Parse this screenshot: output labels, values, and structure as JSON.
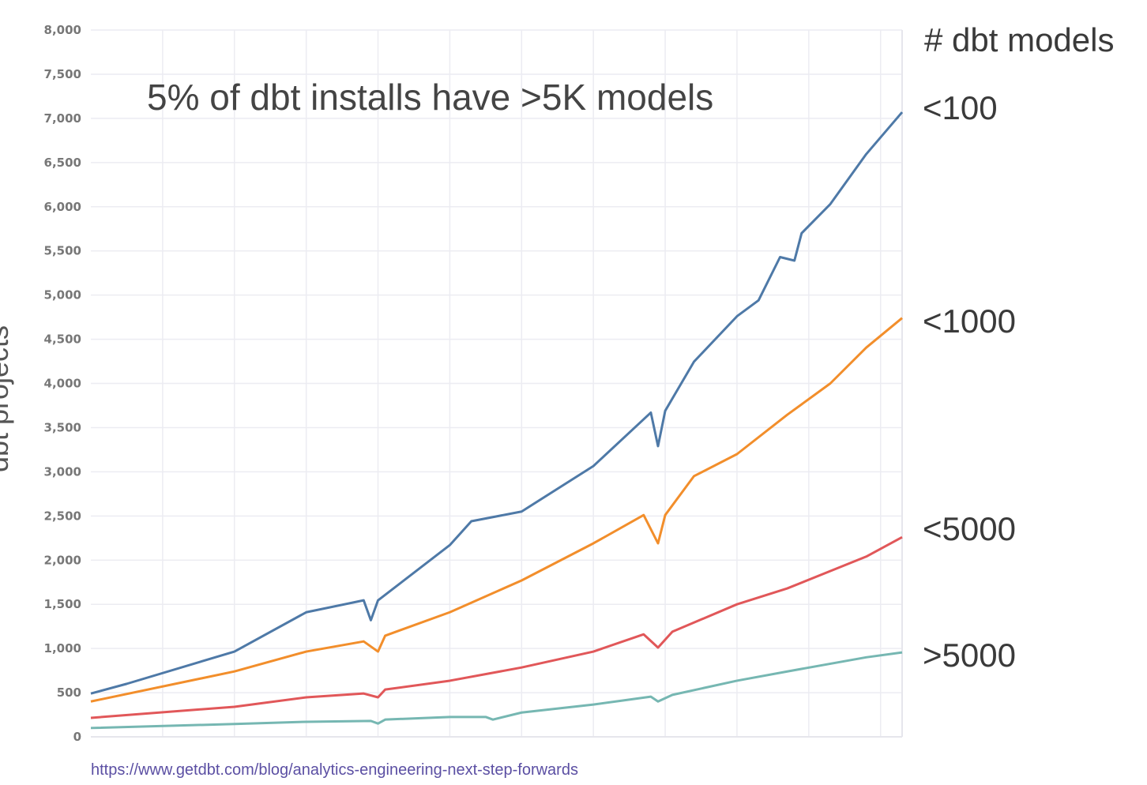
{
  "chart_data": {
    "type": "line",
    "title": "",
    "annotation": "5% of dbt installs have >5K models",
    "ylabel": "dbt projects",
    "xlabel": "",
    "ylim": [
      0,
      8000
    ],
    "yticks": [
      "0",
      "500",
      "1,000",
      "1,500",
      "2,000",
      "2,500",
      "3,000",
      "3,500",
      "4,000",
      "4,500",
      "5,000",
      "5,500",
      "6,000",
      "6,500",
      "7,000",
      "7,500",
      "8,000"
    ],
    "xlim": [
      0,
      113
    ],
    "grid": true,
    "legend_title": "# dbt models",
    "legend_placement": "right",
    "series": [
      {
        "name": "<100",
        "color": "#4e79a7",
        "points": [
          [
            0,
            490
          ],
          [
            5,
            600
          ],
          [
            20,
            965
          ],
          [
            30,
            1410
          ],
          [
            38,
            1545
          ],
          [
            39,
            1320
          ],
          [
            40,
            1545
          ],
          [
            50,
            2170
          ],
          [
            53,
            2440
          ],
          [
            60,
            2550
          ],
          [
            70,
            3065
          ],
          [
            78,
            3670
          ],
          [
            79,
            3290
          ],
          [
            80,
            3690
          ],
          [
            84,
            4245
          ],
          [
            90,
            4760
          ],
          [
            93,
            4940
          ],
          [
            96,
            5430
          ],
          [
            98,
            5390
          ],
          [
            99,
            5700
          ],
          [
            103,
            6030
          ],
          [
            108,
            6595
          ],
          [
            113,
            7070
          ]
        ]
      },
      {
        "name": "<1000",
        "color": "#f28e2b",
        "points": [
          [
            0,
            400
          ],
          [
            20,
            740
          ],
          [
            30,
            965
          ],
          [
            38,
            1080
          ],
          [
            40,
            965
          ],
          [
            41,
            1145
          ],
          [
            50,
            1410
          ],
          [
            60,
            1770
          ],
          [
            70,
            2190
          ],
          [
            77,
            2510
          ],
          [
            79,
            2190
          ],
          [
            80,
            2510
          ],
          [
            84,
            2950
          ],
          [
            90,
            3200
          ],
          [
            97,
            3645
          ],
          [
            103,
            4000
          ],
          [
            108,
            4405
          ],
          [
            113,
            4740
          ]
        ]
      },
      {
        "name": "<5000",
        "color": "#e15759",
        "points": [
          [
            0,
            215
          ],
          [
            20,
            340
          ],
          [
            30,
            447
          ],
          [
            38,
            490
          ],
          [
            40,
            447
          ],
          [
            41,
            535
          ],
          [
            50,
            635
          ],
          [
            60,
            785
          ],
          [
            70,
            965
          ],
          [
            77,
            1160
          ],
          [
            79,
            1010
          ],
          [
            81,
            1190
          ],
          [
            90,
            1500
          ],
          [
            97,
            1680
          ],
          [
            108,
            2040
          ],
          [
            113,
            2260
          ]
        ]
      },
      {
        "name": ">5000",
        "color": "#76b7b2",
        "points": [
          [
            0,
            100
          ],
          [
            20,
            145
          ],
          [
            30,
            170
          ],
          [
            39,
            180
          ],
          [
            40,
            150
          ],
          [
            41,
            195
          ],
          [
            50,
            225
          ],
          [
            55,
            225
          ],
          [
            56,
            195
          ],
          [
            60,
            275
          ],
          [
            70,
            365
          ],
          [
            78,
            455
          ],
          [
            79,
            400
          ],
          [
            81,
            475
          ],
          [
            90,
            635
          ],
          [
            97,
            740
          ],
          [
            108,
            900
          ],
          [
            113,
            955
          ]
        ]
      }
    ]
  },
  "footer": {
    "url": "https://www.getdbt.com/blog/analytics-engineering-next-step-forwards"
  }
}
